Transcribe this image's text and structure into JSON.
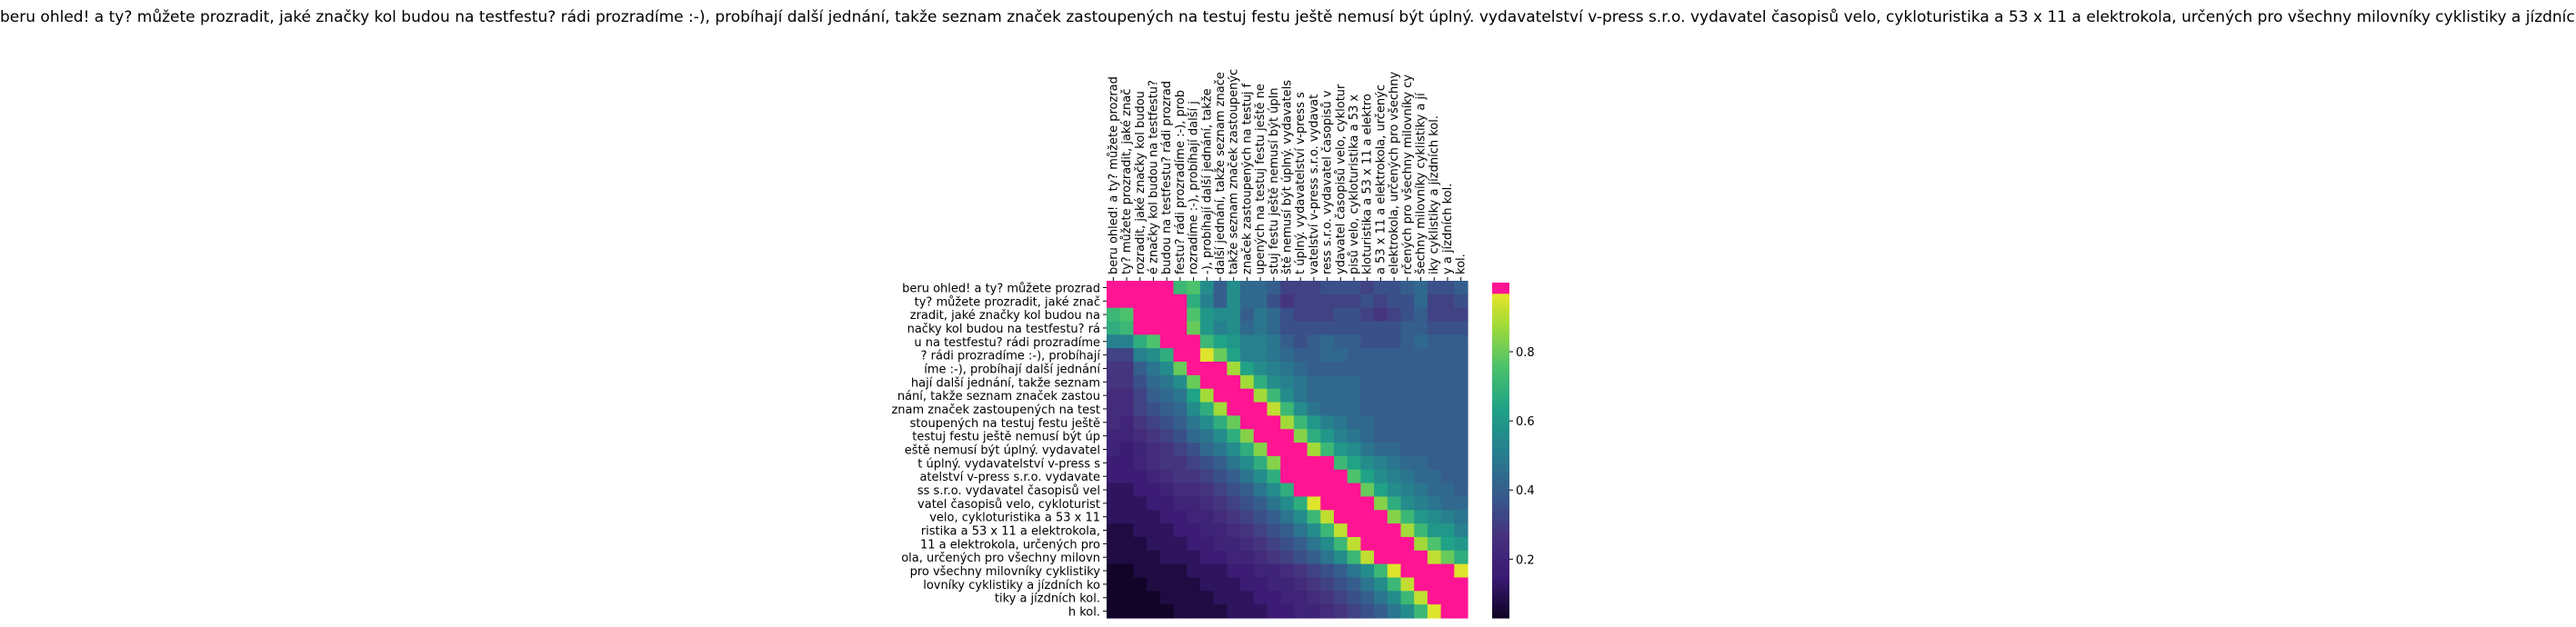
{
  "chart_data": {
    "type": "heatmap",
    "title": "beru ohled! a ty? můžete prozradit, jaké značky kol budou na testfestu? rádi prozradíme :-), probíhají další jednání, takže seznam značek zastoupených na testuj festu ještě nemusí být úplný. vydavatelství v-press s.r.o. vydavatel časopisů velo, cykloturistika a 53 x 11 a elektrokola, určených pro všechny milovníky cyklistiky a jízdních kol.",
    "x_tick_labels": [
      "beru ohled! a ty? můžete prozrad",
      "ty? můžete prozradit, jaké znač",
      "rozradit, jaké značky kol budou",
      "é značky kol budou na testfestu?",
      "budou na testfestu? rádi prozrad",
      "festu? rádi prozradíme :-), prob",
      "rozradíme :-), probíhají další j",
      "-), probíhají další jednání, takže",
      "další jednání, takže seznam znače",
      "takže seznam značek zastoupenýc",
      "značek zastoupených na testuj f",
      "upených na testuj festu ještě ne",
      "stuj festu ještě nemusí být úpln",
      "ště nemusí být úplný. vydavatels",
      "t úplný. vydavatelství v-press s",
      "vatelství v-press s.r.o. vydavat",
      "ress s.r.o. vydavatel časopisů v",
      "ydavatel časopisů velo, cyklotur",
      "pisů velo, cykloturistika a 53 x",
      "kloturistika a 53 x 11 a elektro",
      "a 53 x 11 a elektrokola, určenýc",
      "elektrokola, určených pro všechny",
      "rčených pro všechny milovníky cy",
      "šechny milovníky cyklistiky a jí",
      "iky cyklistiky a jízdních kol.",
      "y a jízdních kol.",
      "kol."
    ],
    "y_tick_labels": [
      "beru ohled! a ty? můžete prozrad",
      "ty? můžete prozradit, jaké znač",
      "zradit, jaké značky kol budou na",
      "načky kol budou na testfestu? rá",
      "u na testfestu? rádi prozradíme",
      "? rádi prozradíme :-), probíhají",
      "íme :-), probíhají další jednání",
      "hají další jednání, takže seznam",
      "nání, takže seznam značek zastou",
      "znam značek zastoupených na test",
      "stoupených na testuj festu ještě",
      "testuj festu ještě nemusí být úp",
      "eště nemusí být úplný. vydavatel",
      "t úplný. vydavatelství v-press s",
      "atelství v-press s.r.o. vydavate",
      "ss s.r.o. vydavatel časopisů vel",
      "vatel časopisů velo, cykloturist",
      "velo, cykloturistika a 53 x 11",
      "ristika a 53 x 11 a elektrokola,",
      "11 a elektrokola, určených pro",
      "ola, určených pro všechny milovn",
      "pro všechny milovníky cyklistiky",
      "lovníky cyklistiky a jízdních ko",
      "tiky a jízdních kol.",
      "h kol."
    ],
    "colorbar": {
      "min": 0.03,
      "max": 1.0,
      "ticks": [
        0.2,
        0.4,
        0.6,
        0.8
      ],
      "tick_labels": [
        "0.2",
        "0.4",
        "0.6",
        "0.8"
      ],
      "saturate_above": 0.97
    },
    "cmap_stops": [
      "#0d0221",
      "#3b1a73",
      "#46327e",
      "#365c8d",
      "#277f8e",
      "#1fa187",
      "#4ac16d",
      "#a0da39",
      "#fde725"
    ],
    "saturate_color": "#ff1493",
    "matrix_rows": [
      "YYYYYRSNJNKKJHHHIIIHIIJKIIJ",
      "YYYYYYQMJNKKIGHHHHHIHIIKHHI",
      "RSYYYYSONNJLKIHHHIIHGHIJHHH",
      "QRYYYYTOMNKLKIIIIIIIIIJJIII",
      "MMQSYYYRPOMMLJIJKJJIIIJKJJJ",
      "HHMNQYYXTPMMLKJJKKJJJJJJJJJ",
      "GGJLNTYYYVPNMLKJJJJJJJJJJJJ",
      "GGIKLNTYYYVQNMLKKKKJJJJJJJJ",
      "FFHJKLPVYYYVRNLKKKKJJJJJJJJ",
      "FFHIJKNQVYYYWRNLKKKJJJJJJJJ",
      "FEGHIJLNQTYYYVROMLKKJJJJJJJ",
      "EEFGHIKLNQUYYYUQOMLKJJJJJJJ",
      "EDEFGHIKLNQUYYYVRONLKKJJJJJ",
      "DDEFGGHIJLNQUYYYYRPNMLKKJJJ",
      "DDDEFGGHIJLNQYYYYYSPNMLKKJJ",
      "CCDDEFFGHIJLNQYYYYYTPNMLKKJ",
      "CCCDDEEFGHIJLNQXYYYYUQNMLKK",
      "CCCCDDEEFGHIJLNRWYYYYURONML",
      "BBCCCDDEEFGHIJLNRWYYYYVROOM",
      "BBBCCCDDEEFGHIJLNRWYYYYVSPO",
      "BBBBCCCDDEEFGHIJLNRWYYYYWTQ",
      "AABBBBCCCDDEEFGHIJLNRXYYYYX",
      "AAABBBBCCCDDEEFGHIJLNRWYYYY",
      "AAAABBBBCCCDDEEFGHIJLNRWYYY",
      "AAAAABBBBCCCDDEEFGHIJLNRXYY"
    ],
    "matrix_level_scale": "A=0.04 ... Y=0.98 in steps of 0.04"
  }
}
